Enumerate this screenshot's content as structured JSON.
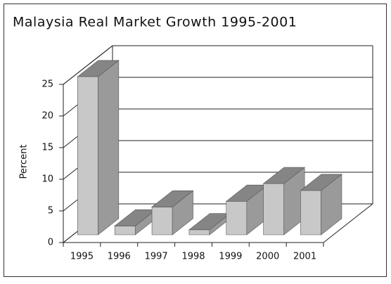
{
  "chart_data": {
    "type": "bar3d",
    "title": "Malaysia Real Market Growth 1995-2001",
    "y_label": "Percent",
    "categories": [
      "1995",
      "1996",
      "1997",
      "1998",
      "1999",
      "2000",
      "2001"
    ],
    "values": [
      25,
      1.4,
      4.4,
      0.8,
      5.3,
      8.1,
      7.0
    ],
    "ylim": [
      0,
      25
    ],
    "yticks": [
      0,
      5,
      10,
      15,
      20,
      25
    ],
    "grid": true,
    "color": "#c8c8c8"
  }
}
